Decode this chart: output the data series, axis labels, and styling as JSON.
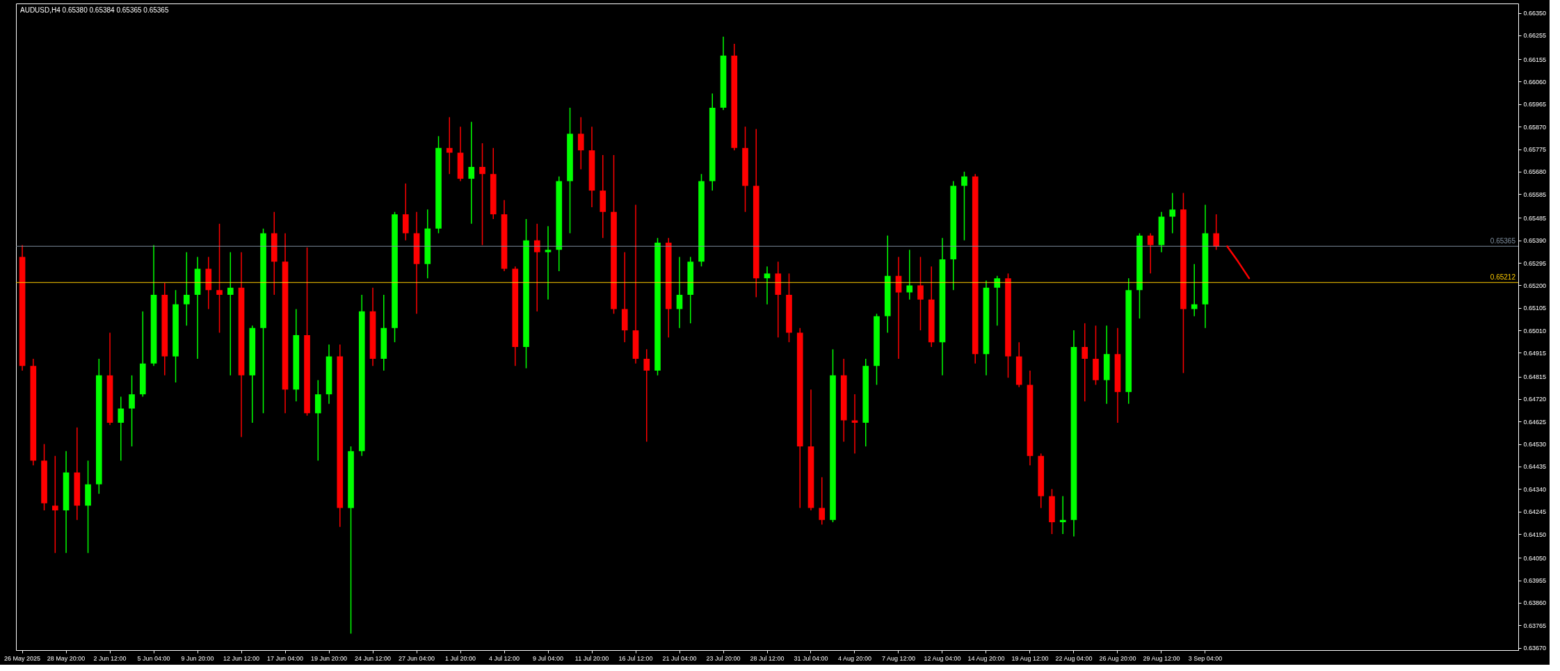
{
  "chart_data": {
    "type": "candlestick",
    "title": "AUDUSD,H4 0.65380 0.65384 0.65365 0.65365",
    "categories": [
      "26 May 2025",
      null,
      null,
      null,
      "28 May 20:00",
      null,
      null,
      null,
      "2 Jun 12:00",
      null,
      null,
      null,
      "5 Jun 04:00",
      null,
      null,
      null,
      "9 Jun 20:00",
      null,
      null,
      null,
      "12 Jun 12:00",
      null,
      null,
      null,
      "17 Jun 04:00",
      null,
      null,
      null,
      "19 Jun 20:00",
      null,
      null,
      null,
      "24 Jun 12:00",
      null,
      null,
      null,
      "27 Jun 04:00",
      null,
      null,
      null,
      "1 Jul 20:00",
      null,
      null,
      null,
      "4 Jul 12:00",
      null,
      null,
      null,
      "9 Jul 04:00",
      null,
      null,
      null,
      "11 Jul 20:00",
      null,
      null,
      null,
      "16 Jul 12:00",
      null,
      null,
      null,
      "21 Jul 04:00",
      null,
      null,
      null,
      "23 Jul 20:00",
      null,
      null,
      null,
      "28 Jul 12:00",
      null,
      null,
      null,
      "31 Jul 04:00",
      null,
      null,
      null,
      "4 Aug 20:00",
      null,
      null,
      null,
      "7 Aug 12:00",
      null,
      null,
      null,
      "12 Aug 04:00",
      null,
      null,
      null,
      "14 Aug 20:00",
      null,
      null,
      null,
      "19 Aug 12:00",
      null,
      null,
      null,
      "22 Aug 04:00",
      null,
      null,
      null,
      "26 Aug 20:00",
      null,
      null,
      null,
      "29 Aug 12:00",
      null,
      null,
      null,
      "3 Sep 04:00",
      null,
      null,
      null,
      null,
      null,
      null,
      null,
      null,
      null,
      null,
      null,
      null,
      null,
      null,
      null,
      null,
      null,
      null,
      null,
      null,
      null,
      null,
      null,
      null,
      null,
      null,
      null,
      null
    ],
    "ohlc": [
      [
        0.6532,
        0.6537,
        0.6484,
        0.6486
      ],
      [
        0.6486,
        0.6489,
        0.6444,
        0.6446
      ],
      [
        0.6446,
        0.6453,
        0.6425,
        0.6428
      ],
      [
        0.6427,
        0.6448,
        0.6407,
        0.6425
      ],
      [
        0.6425,
        0.645,
        0.6407,
        0.6441
      ],
      [
        0.6441,
        0.646,
        0.6421,
        0.6427
      ],
      [
        0.6427,
        0.6446,
        0.6407,
        0.6436
      ],
      [
        0.6436,
        0.6489,
        0.6432,
        0.6482
      ],
      [
        0.6482,
        0.65,
        0.6461,
        0.6462
      ],
      [
        0.6462,
        0.6473,
        0.6446,
        0.6468
      ],
      [
        0.6468,
        0.6482,
        0.6452,
        0.6474
      ],
      [
        0.6474,
        0.6509,
        0.6473,
        0.6487
      ],
      [
        0.6487,
        0.6537,
        0.6486,
        0.6516
      ],
      [
        0.6516,
        0.6521,
        0.6482,
        0.649
      ],
      [
        0.649,
        0.6518,
        0.6479,
        0.6512
      ],
      [
        0.6512,
        0.6534,
        0.6503,
        0.6516
      ],
      [
        0.6516,
        0.6532,
        0.6489,
        0.6527
      ],
      [
        0.6527,
        0.6532,
        0.651,
        0.6518
      ],
      [
        0.6518,
        0.6546,
        0.65,
        0.6516
      ],
      [
        0.6516,
        0.6534,
        0.6482,
        0.6519
      ],
      [
        0.6519,
        0.6534,
        0.6456,
        0.6482
      ],
      [
        0.6482,
        0.6503,
        0.6462,
        0.6502
      ],
      [
        0.6502,
        0.6544,
        0.6466,
        0.6542
      ],
      [
        0.6542,
        0.6551,
        0.6516,
        0.653
      ],
      [
        0.653,
        0.6542,
        0.6466,
        0.6476
      ],
      [
        0.6476,
        0.651,
        0.6471,
        0.6499
      ],
      [
        0.6499,
        0.6536,
        0.6465,
        0.6466
      ],
      [
        0.6466,
        0.648,
        0.6446,
        0.6474
      ],
      [
        0.6474,
        0.6495,
        0.647,
        0.649
      ],
      [
        0.649,
        0.6495,
        0.6418,
        0.6426
      ],
      [
        0.6426,
        0.6452,
        0.6373,
        0.645
      ],
      [
        0.645,
        0.6516,
        0.6448,
        0.6509
      ],
      [
        0.6509,
        0.6519,
        0.6486,
        0.6489
      ],
      [
        0.6489,
        0.6516,
        0.6484,
        0.6502
      ],
      [
        0.6502,
        0.6551,
        0.6496,
        0.655
      ],
      [
        0.655,
        0.6563,
        0.6539,
        0.6542
      ],
      [
        0.6542,
        0.6551,
        0.6508,
        0.6529
      ],
      [
        0.6529,
        0.6552,
        0.6523,
        0.6544
      ],
      [
        0.6544,
        0.6583,
        0.6542,
        0.6578
      ],
      [
        0.6578,
        0.6591,
        0.6567,
        0.6576
      ],
      [
        0.6576,
        0.6587,
        0.6564,
        0.6565
      ],
      [
        0.6565,
        0.6589,
        0.6546,
        0.657
      ],
      [
        0.657,
        0.658,
        0.6537,
        0.6567
      ],
      [
        0.6567,
        0.6578,
        0.6548,
        0.655
      ],
      [
        0.655,
        0.6556,
        0.6526,
        0.6527
      ],
      [
        0.6527,
        0.6528,
        0.6486,
        0.6494
      ],
      [
        0.6494,
        0.6548,
        0.6485,
        0.6539
      ],
      [
        0.6539,
        0.6546,
        0.6509,
        0.6534
      ],
      [
        0.6534,
        0.6545,
        0.6514,
        0.6535
      ],
      [
        0.6535,
        0.6566,
        0.6526,
        0.6564
      ],
      [
        0.6564,
        0.6595,
        0.6542,
        0.6584
      ],
      [
        0.6584,
        0.6591,
        0.6569,
        0.6577
      ],
      [
        0.6577,
        0.6587,
        0.6553,
        0.656
      ],
      [
        0.656,
        0.6575,
        0.654,
        0.6551
      ],
      [
        0.6551,
        0.6575,
        0.6508,
        0.651
      ],
      [
        0.651,
        0.6534,
        0.6496,
        0.6501
      ],
      [
        0.6501,
        0.6554,
        0.6487,
        0.6489
      ],
      [
        0.6489,
        0.6493,
        0.6454,
        0.6484
      ],
      [
        0.6484,
        0.654,
        0.6482,
        0.6538
      ],
      [
        0.6538,
        0.654,
        0.6498,
        0.651
      ],
      [
        0.651,
        0.6532,
        0.6502,
        0.6516
      ],
      [
        0.6516,
        0.6532,
        0.6504,
        0.653
      ],
      [
        0.653,
        0.6567,
        0.6528,
        0.6564
      ],
      [
        0.6564,
        0.6601,
        0.656,
        0.6595
      ],
      [
        0.6595,
        0.6625,
        0.6594,
        0.6617
      ],
      [
        0.6617,
        0.6622,
        0.6577,
        0.6578
      ],
      [
        0.6578,
        0.6587,
        0.6551,
        0.6562
      ],
      [
        0.6562,
        0.6586,
        0.6515,
        0.6523
      ],
      [
        0.6523,
        0.6528,
        0.6512,
        0.6525
      ],
      [
        0.6525,
        0.653,
        0.6498,
        0.6516
      ],
      [
        0.6516,
        0.6525,
        0.6496,
        0.65
      ],
      [
        0.65,
        0.6502,
        0.6426,
        0.6452
      ],
      [
        0.6452,
        0.6476,
        0.6425,
        0.6426
      ],
      [
        0.6426,
        0.6439,
        0.6419,
        0.6421
      ],
      [
        0.6421,
        0.6493,
        0.642,
        0.6482
      ],
      [
        0.6482,
        0.6489,
        0.6454,
        0.6463
      ],
      [
        0.6463,
        0.6474,
        0.6449,
        0.6462
      ],
      [
        0.6462,
        0.6489,
        0.6452,
        0.6486
      ],
      [
        0.6486,
        0.6508,
        0.6478,
        0.6507
      ],
      [
        0.6507,
        0.6541,
        0.65,
        0.6524
      ],
      [
        0.6524,
        0.6532,
        0.6489,
        0.6517
      ],
      [
        0.6517,
        0.6535,
        0.6514,
        0.652
      ],
      [
        0.652,
        0.6532,
        0.6501,
        0.6514
      ],
      [
        0.6514,
        0.6528,
        0.6494,
        0.6496
      ],
      [
        0.6496,
        0.654,
        0.6482,
        0.6531
      ],
      [
        0.6531,
        0.6564,
        0.6518,
        0.6562
      ],
      [
        0.6562,
        0.6568,
        0.6539,
        0.6566
      ],
      [
        0.6566,
        0.6567,
        0.6487,
        0.6491
      ],
      [
        0.6491,
        0.6522,
        0.6482,
        0.6519
      ],
      [
        0.6519,
        0.6524,
        0.6503,
        0.6523
      ],
      [
        0.6523,
        0.6525,
        0.6481,
        0.649
      ],
      [
        0.649,
        0.6496,
        0.6477,
        0.6478
      ],
      [
        0.6478,
        0.6484,
        0.6444,
        0.6448
      ],
      [
        0.6448,
        0.6449,
        0.6426,
        0.6431
      ],
      [
        0.6431,
        0.6434,
        0.6415,
        0.642
      ],
      [
        0.642,
        0.6431,
        0.6415,
        0.6421
      ],
      [
        0.6421,
        0.6501,
        0.6414,
        0.6494
      ],
      [
        0.6494,
        0.6504,
        0.6471,
        0.6489
      ],
      [
        0.6489,
        0.6503,
        0.6478,
        0.648
      ],
      [
        0.648,
        0.6503,
        0.647,
        0.6491
      ],
      [
        0.6491,
        0.6502,
        0.6462,
        0.6475
      ],
      [
        0.6475,
        0.6523,
        0.647,
        0.6518
      ],
      [
        0.6518,
        0.6542,
        0.6506,
        0.6541
      ],
      [
        0.6541,
        0.6542,
        0.6525,
        0.6537
      ],
      [
        0.6537,
        0.6551,
        0.6534,
        0.6549
      ],
      [
        0.6549,
        0.6559,
        0.6542,
        0.6552
      ],
      [
        0.6552,
        0.6559,
        0.6483,
        0.651
      ],
      [
        0.651,
        0.6529,
        0.6507,
        0.6512
      ],
      [
        0.6512,
        0.6554,
        0.6502,
        0.6542
      ],
      [
        0.6542,
        0.655,
        0.6535,
        0.65365
      ],
      null,
      null,
      null,
      null,
      null,
      null,
      null,
      null,
      null,
      null,
      null,
      null,
      null,
      null,
      null,
      null,
      null,
      null,
      null,
      null,
      null,
      null,
      null,
      null,
      null,
      null,
      null
    ],
    "colors": [
      "#ff0000",
      "#ff0000",
      "#ff0000",
      "#ff0000",
      "#00ff00",
      "#ff0000",
      "#00ff00",
      "#00ff00",
      "#ff0000",
      "#00ff00",
      "#00ff00",
      "#00ff00",
      "#00ff00",
      "#ff0000",
      "#00ff00",
      "#00ff00",
      "#00ff00",
      "#ff0000",
      "#ff0000",
      "#00ff00",
      "#ff0000",
      "#00ff00",
      "#00ff00",
      "#ff0000",
      "#ff0000",
      "#00ff00",
      "#ff0000",
      "#00ff00",
      "#00ff00",
      "#ff0000",
      "#00ff00",
      "#00ff00",
      "#ff0000",
      "#00ff00",
      "#00ff00",
      "#ff0000",
      "#ff0000",
      "#00ff00",
      "#00ff00",
      "#ff0000",
      "#ff0000",
      "#00ff00",
      "#ff0000",
      "#ff0000",
      "#ff0000",
      "#ff0000",
      "#00ff00",
      "#ff0000",
      "#00ff00",
      "#00ff00",
      "#00ff00",
      "#ff0000",
      "#ff0000",
      "#ff0000",
      "#ff0000",
      "#ff0000",
      "#ff0000",
      "#ff0000",
      "#00ff00",
      "#ff0000",
      "#00ff00",
      "#00ff00",
      "#00ff00",
      "#00ff00",
      "#00ff00",
      "#ff0000",
      "#ff0000",
      "#ff0000",
      "#00ff00",
      "#ff0000",
      "#ff0000",
      "#ff0000",
      "#ff0000",
      "#ff0000",
      "#00ff00",
      "#ff0000",
      "#ff0000",
      "#00ff00",
      "#00ff00",
      "#00ff00",
      "#ff0000",
      "#00ff00",
      "#ff0000",
      "#ff0000",
      "#00ff00",
      "#00ff00",
      "#00ff00",
      "#ff0000",
      "#00ff00",
      "#00ff00",
      "#ff0000",
      "#ff0000",
      "#ff0000",
      "#ff0000",
      "#ff0000",
      "#00ff00",
      "#00ff00",
      "#ff0000",
      "#ff0000",
      "#00ff00",
      "#ff0000",
      "#00ff00",
      "#00ff00",
      "#ff0000",
      "#00ff00",
      "#00ff00",
      "#ff0000",
      "#00ff00",
      "#00ff00",
      "#ff0000",
      null,
      null,
      null,
      null,
      null,
      null,
      null,
      null,
      null,
      null,
      null,
      null,
      null,
      null,
      null,
      null,
      null,
      null,
      null,
      null,
      null,
      null,
      null,
      null,
      null,
      null,
      null
    ],
    "series": [
      {
        "type": "line",
        "color": "#ff0000",
        "values": [
          null,
          null,
          null,
          null,
          null,
          null,
          null,
          null,
          null,
          null,
          null,
          null,
          null,
          null,
          null,
          null,
          null,
          null,
          null,
          null,
          null,
          null,
          null,
          null,
          null,
          null,
          null,
          null,
          null,
          null,
          null,
          null,
          null,
          null,
          null,
          null,
          null,
          null,
          null,
          null,
          null,
          null,
          null,
          null,
          null,
          null,
          null,
          null,
          null,
          null,
          null,
          null,
          null,
          null,
          null,
          null,
          null,
          null,
          null,
          null,
          null,
          null,
          null,
          null,
          null,
          null,
          null,
          null,
          null,
          null,
          null,
          null,
          null,
          null,
          null,
          null,
          null,
          null,
          null,
          null,
          null,
          null,
          null,
          null,
          null,
          null,
          null,
          null,
          null,
          null,
          null,
          null,
          null,
          null,
          null,
          null,
          null,
          null,
          null,
          null,
          null,
          null,
          null,
          null,
          null,
          null,
          null,
          null,
          null,
          null,
          0.65365,
          0.653,
          0.6523,
          null,
          null,
          null,
          null,
          null,
          null,
          null,
          null,
          null,
          null,
          null,
          null,
          null,
          null,
          null,
          null,
          null,
          null,
          null,
          null,
          null,
          null,
          null,
          null
        ]
      }
    ],
    "ylim": [
      0.6366,
      0.6639
    ],
    "yticks": [
      {
        "value": 0.6635,
        "label": "0.66350"
      },
      0.66255,
      0.66155,
      {
        "value": 0.6606,
        "label": "0.66060"
      },
      0.65965,
      {
        "value": 0.6587,
        "label": "0.65870"
      },
      0.65775,
      {
        "value": 0.6568,
        "label": "0.65680"
      },
      0.65585,
      0.65485,
      {
        "value": 0.6539,
        "label": "0.65390"
      },
      0.65295,
      {
        "value": 0.652,
        "label": "0.65200"
      },
      0.65105,
      {
        "value": 0.6501,
        "label": "0.65010"
      },
      0.64915,
      0.64815,
      {
        "value": 0.6472,
        "label": "0.64720"
      },
      0.64625,
      {
        "value": 0.6453,
        "label": "0.64530"
      },
      0.64435,
      {
        "value": 0.6434,
        "label": "0.64340"
      },
      0.64245,
      {
        "value": 0.6415,
        "label": "0.64150"
      },
      {
        "value": 0.6405,
        "label": "0.64050"
      },
      0.63955,
      {
        "value": 0.6386,
        "label": "0.63860"
      },
      0.63765,
      {
        "value": 0.6367,
        "label": "0.63670"
      }
    ],
    "ref_lines": [
      {
        "axis": "y",
        "value": 0.65365,
        "label": "0.65365",
        "color": "#8090a0"
      },
      {
        "axis": "y",
        "value": 0.65212,
        "label": "0.65212",
        "color": "#ffcc00"
      }
    ]
  }
}
